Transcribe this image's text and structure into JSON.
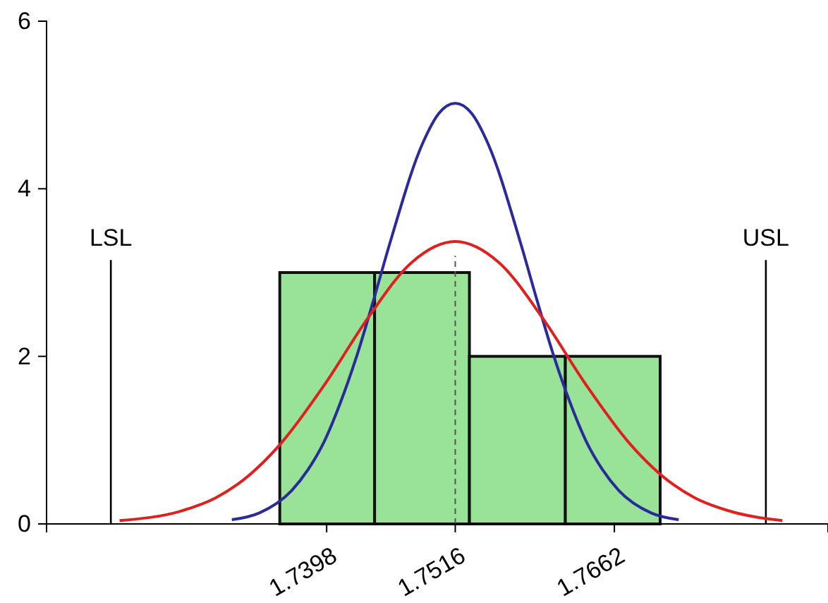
{
  "chart_data": {
    "type": "histogram",
    "bins": [
      1.7355,
      1.7442,
      1.7529,
      1.7617,
      1.7704
    ],
    "values": [
      3,
      3,
      2,
      2
    ],
    "color": "#98e397",
    "series": [
      {
        "type": "line",
        "color": "#2a2a9a",
        "x": [
          1.7311,
          1.7336,
          1.7366,
          1.7381,
          1.7396,
          1.7411,
          1.7426,
          1.7441,
          1.7456,
          1.7486,
          1.7501,
          1.7516,
          1.7531,
          1.7546,
          1.7576,
          1.7591,
          1.7606,
          1.7621,
          1.7636,
          1.7651,
          1.7666,
          1.7696,
          1.7721
        ],
        "values": [
          0.05,
          0.13,
          0.4,
          0.65,
          0.99,
          1.46,
          2.02,
          2.67,
          3.35,
          4.54,
          4.9,
          5.02,
          4.9,
          4.54,
          3.35,
          2.67,
          2.02,
          1.46,
          0.99,
          0.65,
          0.4,
          0.13,
          0.05
        ]
      },
      {
        "type": "line",
        "color": "#e0201f",
        "x": [
          1.7208,
          1.7266,
          1.7296,
          1.7316,
          1.7356,
          1.7396,
          1.7436,
          1.7476,
          1.7516,
          1.7556,
          1.7596,
          1.7636,
          1.7676,
          1.7716,
          1.7736,
          1.7766,
          1.7816
        ],
        "values": [
          0.04,
          0.16,
          0.31,
          0.47,
          0.96,
          1.66,
          2.46,
          3.12,
          3.37,
          3.12,
          2.46,
          1.66,
          0.96,
          0.47,
          0.31,
          0.16,
          0.04
        ]
      }
    ],
    "xlim": [
      1.7141,
      1.7858
    ],
    "xticks": [
      1.7398,
      1.7516,
      1.7662
    ],
    "ylim": [
      0,
      6
    ],
    "yticks": [
      0,
      2,
      4,
      6
    ],
    "grid": false,
    "line_style": "solid",
    "marker": "none",
    "ref_lines": [
      {
        "axis": "x",
        "value": 1.72,
        "label": "LSL",
        "color": "#000000",
        "line_style": "solid"
      },
      {
        "axis": "x",
        "value": 1.7801,
        "label": "USL",
        "color": "#000000",
        "line_style": "solid"
      },
      {
        "axis": "x",
        "value": 1.7516,
        "color": "#555555",
        "line_style": "dashed"
      }
    ]
  }
}
